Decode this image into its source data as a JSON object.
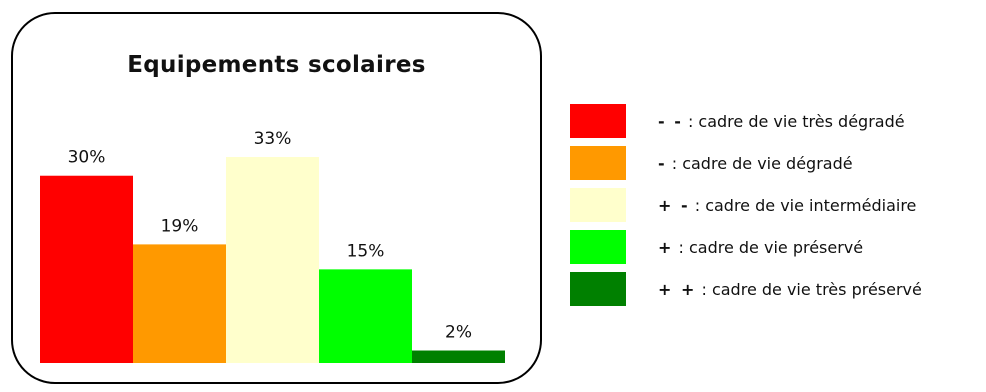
{
  "chart_data": {
    "type": "bar",
    "title": "Equipements scolaires",
    "categories": [
      "- -",
      "-",
      "+ -",
      "+",
      "+ +"
    ],
    "values": [
      30,
      19,
      33,
      15,
      2
    ],
    "value_labels": [
      "30%",
      "19%",
      "33%",
      "15%",
      "2%"
    ],
    "colors": [
      "#ff0000",
      "#ff9900",
      "#ffffcc",
      "#00ff00",
      "#008000"
    ],
    "ylim": [
      0,
      33
    ],
    "grid": false,
    "legend_position": "right"
  },
  "legend": {
    "items": [
      {
        "symbol": "- -",
        "text": " : cadre de vie très dégradé",
        "color": "#ff0000"
      },
      {
        "symbol": "-",
        "text": " : cadre de vie dégradé",
        "color": "#ff9900"
      },
      {
        "symbol": "+ -",
        "text": " : cadre de vie intermédiaire",
        "color": "#ffffcc"
      },
      {
        "symbol": "+",
        "text": " : cadre de vie préservé",
        "color": "#00ff00"
      },
      {
        "symbol": "+ +",
        "text": " : cadre de vie très préservé",
        "color": "#008000"
      }
    ]
  }
}
